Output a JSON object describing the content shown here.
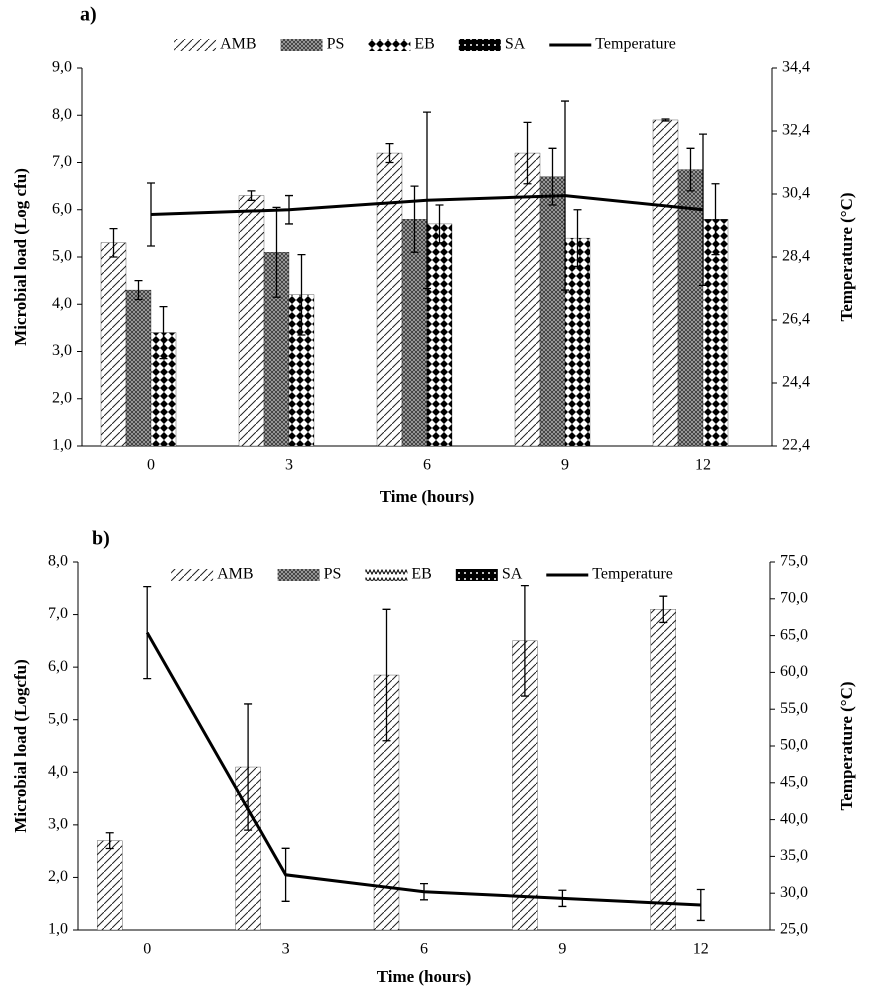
{
  "chart_data": [
    {
      "type": "bar",
      "title": "a)",
      "x_label": "Time (hours)",
      "y_label": "Microbial load (Log cfu)",
      "y2_label": "Temperature (°C)",
      "categories": [
        "0",
        "3",
        "6",
        "9",
        "12"
      ],
      "ylim": [
        1,
        9
      ],
      "yticks": [
        {
          "value": 1,
          "label": "1,0"
        },
        {
          "value": 2,
          "label": "2,0"
        },
        {
          "value": 3,
          "label": "3,0"
        },
        {
          "value": 4,
          "label": "4,0"
        },
        {
          "value": 5,
          "label": "5,0"
        },
        {
          "value": 6,
          "label": "6,0"
        },
        {
          "value": 7,
          "label": "7,0"
        },
        {
          "value": 8,
          "label": "8,0"
        },
        {
          "value": 9,
          "label": "9,0"
        }
      ],
      "y2lim": [
        22.4,
        34.4
      ],
      "y2ticks": [
        {
          "value": 22.4,
          "label": "22,4"
        },
        {
          "value": 24.4,
          "label": "24,4"
        },
        {
          "value": 26.4,
          "label": "26,4"
        },
        {
          "value": 28.4,
          "label": "28,4"
        },
        {
          "value": 30.4,
          "label": "30,4"
        },
        {
          "value": 32.4,
          "label": "32,4"
        },
        {
          "value": 34.4,
          "label": "34,4"
        }
      ],
      "legend": "top",
      "series": [
        {
          "name": "AMB",
          "color": "#000000",
          "pattern": "diagonal",
          "values": [
            5.3,
            6.3,
            7.2,
            7.2,
            7.9
          ],
          "errors": [
            0.3,
            0.1,
            0.2,
            0.65,
            0.02
          ]
        },
        {
          "name": "PS",
          "color": "#000000",
          "pattern": "crosshatch",
          "values": [
            4.3,
            5.1,
            5.8,
            6.7,
            6.85
          ],
          "errors": [
            0.2,
            0.95,
            0.7,
            0.6,
            0.45
          ]
        },
        {
          "name": "EB",
          "color": "#000000",
          "pattern": "diamond",
          "values": [
            3.4,
            4.2,
            5.7,
            5.4,
            5.8
          ],
          "errors": [
            0.55,
            0.85,
            0.4,
            0.6,
            0.75
          ]
        },
        {
          "name": "SA",
          "color": "#000000",
          "pattern": "dots",
          "values": [
            null,
            null,
            null,
            null,
            null
          ],
          "errors": [
            null,
            null,
            null,
            null,
            null
          ]
        },
        {
          "name": "Temperature",
          "color": "#000000",
          "type": "line",
          "axis": "y2",
          "values": [
            29.75,
            29.9,
            30.2,
            30.35,
            29.9
          ],
          "errors": [
            1.0,
            0.45,
            2.8,
            3.0,
            2.4
          ]
        }
      ]
    },
    {
      "type": "bar",
      "title": "b)",
      "x_label": "Time (hours)",
      "y_label": "Microbial load (Logcfu)",
      "y2_label": "Temperature (°C)",
      "categories": [
        "0",
        "3",
        "6",
        "9",
        "12"
      ],
      "ylim": [
        1,
        8
      ],
      "yticks": [
        {
          "value": 1,
          "label": "1,0"
        },
        {
          "value": 2,
          "label": "2,0"
        },
        {
          "value": 3,
          "label": "3,0"
        },
        {
          "value": 4,
          "label": "4,0"
        },
        {
          "value": 5,
          "label": "5,0"
        },
        {
          "value": 6,
          "label": "6,0"
        },
        {
          "value": 7,
          "label": "7,0"
        },
        {
          "value": 8,
          "label": "8,0"
        }
      ],
      "y2lim": [
        25,
        75
      ],
      "y2ticks": [
        {
          "value": 25,
          "label": "25,0"
        },
        {
          "value": 30,
          "label": "30,0"
        },
        {
          "value": 35,
          "label": "35,0"
        },
        {
          "value": 40,
          "label": "40,0"
        },
        {
          "value": 45,
          "label": "45,0"
        },
        {
          "value": 50,
          "label": "50,0"
        },
        {
          "value": 55,
          "label": "55,0"
        },
        {
          "value": 60,
          "label": "60,0"
        },
        {
          "value": 65,
          "label": "65,0"
        },
        {
          "value": 70,
          "label": "70,0"
        },
        {
          "value": 75,
          "label": "75,0"
        }
      ],
      "legend": "top",
      "series": [
        {
          "name": "AMB",
          "color": "#000000",
          "pattern": "diagonal",
          "values": [
            2.7,
            4.1,
            5.85,
            6.5,
            7.1
          ],
          "errors": [
            0.15,
            1.2,
            1.25,
            1.05,
            0.25
          ]
        },
        {
          "name": "PS",
          "color": "#000000",
          "pattern": "crosshatch",
          "values": [
            1,
            1,
            1,
            1,
            1
          ],
          "errors": [
            null,
            null,
            null,
            null,
            null
          ]
        },
        {
          "name": "EB",
          "color": "#000000",
          "pattern": "zigzag",
          "values": [
            1,
            1,
            1,
            1,
            1
          ],
          "errors": [
            null,
            null,
            null,
            null,
            null
          ]
        },
        {
          "name": "SA",
          "color": "#000000",
          "pattern": "dots",
          "values": [
            1,
            1,
            1,
            1,
            1
          ],
          "errors": [
            null,
            null,
            null,
            null,
            null
          ]
        },
        {
          "name": "Temperature",
          "color": "#000000",
          "type": "line",
          "axis": "y2",
          "values": [
            65.4,
            32.5,
            30.2,
            29.3,
            28.4
          ],
          "errors": [
            6.25,
            3.6,
            1.1,
            1.1,
            2.1
          ]
        }
      ]
    }
  ]
}
